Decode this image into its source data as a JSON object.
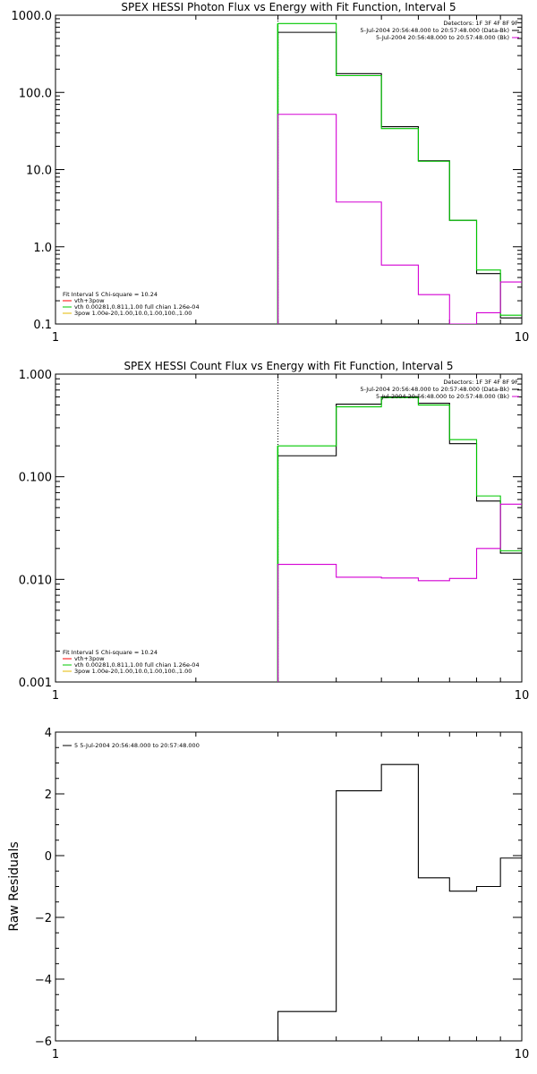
{
  "chart_data": [
    {
      "type": "line",
      "title": "SPEX HESSI Photon Flux vs Energy with Fit Function, Interval 5",
      "xlabel": "",
      "ylabel": "",
      "xscale": "log",
      "yscale": "log",
      "xlim": [
        1,
        10
      ],
      "ylim": [
        0.1,
        1000
      ],
      "xticks": [
        {
          "v": 1,
          "label": "1"
        },
        {
          "v": 10,
          "label": "10"
        }
      ],
      "yticks": [
        {
          "v": 1000,
          "label": "1000.0"
        },
        {
          "v": 100,
          "label": "100.0"
        },
        {
          "v": 10,
          "label": "10.0"
        },
        {
          "v": 1,
          "label": "1.0"
        },
        {
          "v": 0.1,
          "label": "0.1"
        }
      ],
      "vline": 3,
      "legend_right": [
        {
          "text": "Detectors: 1F 3F 4F 8F 9F",
          "color": ""
        },
        {
          "text": "5-Jul-2004 20:56:48.000 to 20:57:48.000 (Data-Bk)",
          "color": "#000000"
        },
        {
          "text": "5-Jul-2004 20:56:48.000 to 20:57:48.000 (Bk)",
          "color": "#d400d4"
        }
      ],
      "legend_left": [
        {
          "text": "Fit Interval 5   Chi-square = 10.24",
          "color": ""
        },
        {
          "text": "vth+3pow",
          "color": "#ff0000"
        },
        {
          "text": "vth 0.00281,0.811,1.00   full chian 1.26e-04",
          "color": "#00c800"
        },
        {
          "text": "3pow 1.00e-20,1.00,10.0,1.00,100.,1.00",
          "color": "#e6b800"
        }
      ],
      "series": [
        {
          "color": "#000000",
          "edges": [
            3,
            4,
            5,
            6,
            7,
            8,
            9,
            10
          ],
          "values": [
            600,
            175,
            36,
            13,
            2.2,
            0.45,
            0.12
          ]
        },
        {
          "color": "#00c800",
          "edges": [
            3,
            4,
            5,
            6,
            7,
            8,
            9,
            10
          ],
          "values": [
            780,
            165,
            34,
            12.8,
            2.2,
            0.5,
            0.13
          ]
        },
        {
          "color": "#d400d4",
          "edges": [
            3,
            4,
            5,
            6,
            7,
            8,
            9,
            10
          ],
          "values": [
            52,
            3.8,
            0.58,
            0.24,
            0.1,
            0.14,
            0.35
          ]
        }
      ]
    },
    {
      "type": "line",
      "title": "SPEX HESSI Count Flux vs Energy with Fit Function, Interval 5",
      "xlabel": "",
      "ylabel": "",
      "xscale": "log",
      "yscale": "log",
      "xlim": [
        1,
        10
      ],
      "ylim": [
        0.001,
        1
      ],
      "xticks": [
        {
          "v": 1,
          "label": "1"
        },
        {
          "v": 10,
          "label": "10"
        }
      ],
      "yticks": [
        {
          "v": 1,
          "label": "1.000"
        },
        {
          "v": 0.1,
          "label": "0.100"
        },
        {
          "v": 0.01,
          "label": "0.010"
        },
        {
          "v": 0.001,
          "label": "0.001"
        }
      ],
      "vline": 3,
      "legend_right": [
        {
          "text": "Detectors: 1F 3F 4F 8F 9F",
          "color": ""
        },
        {
          "text": "5-Jul-2004 20:56:48.000 to 20:57:48.000 (Data-Bk)",
          "color": "#000000"
        },
        {
          "text": "5-Jul-2004 20:56:48.000 to 20:57:48.000 (Bk)",
          "color": "#d400d4"
        }
      ],
      "legend_left": [
        {
          "text": "Fit Interval 5   Chi-square = 10.24",
          "color": ""
        },
        {
          "text": "vth+3pow",
          "color": "#ff0000"
        },
        {
          "text": "vth 0.00281,0.811,1.00   full chian 1.26e-04",
          "color": "#00c800"
        },
        {
          "text": "3pow 1.00e-20,1.00,10.0,1.00,100.,1.00",
          "color": "#e6b800"
        }
      ],
      "series": [
        {
          "color": "#000000",
          "edges": [
            3,
            4,
            5,
            6,
            7,
            8,
            9,
            10
          ],
          "values": [
            0.16,
            0.51,
            0.6,
            0.52,
            0.21,
            0.058,
            0.018
          ]
        },
        {
          "color": "#00c800",
          "edges": [
            3,
            4,
            5,
            6,
            7,
            8,
            9,
            10
          ],
          "values": [
            0.2,
            0.48,
            0.59,
            0.5,
            0.23,
            0.065,
            0.019
          ]
        },
        {
          "color": "#d400d4",
          "edges": [
            3,
            4,
            5,
            6,
            7,
            8,
            9,
            10
          ],
          "values": [
            0.014,
            0.0105,
            0.0103,
            0.0097,
            0.0102,
            0.02,
            0.054
          ]
        }
      ]
    },
    {
      "type": "line",
      "title": "",
      "xlabel": "",
      "ylabel": "Raw Residuals",
      "xscale": "log",
      "yscale": "linear",
      "xlim": [
        1,
        10
      ],
      "ylim": [
        -6,
        4
      ],
      "xticks": [
        {
          "v": 1,
          "label": "1"
        },
        {
          "v": 10,
          "label": "10"
        }
      ],
      "yticks": [
        {
          "v": 4,
          "label": "4"
        },
        {
          "v": 2,
          "label": "2"
        },
        {
          "v": 0,
          "label": "0"
        },
        {
          "v": -2,
          "label": "−2"
        },
        {
          "v": -4,
          "label": "−4"
        },
        {
          "v": -6,
          "label": "−6"
        }
      ],
      "legend_left": [
        {
          "text": "5  5-Jul-2004 20:56:48.000 to 20:57:48.000",
          "color": "#000000"
        }
      ],
      "series": [
        {
          "color": "#000000",
          "edges": [
            3,
            4,
            5,
            6,
            7,
            8,
            9,
            10
          ],
          "values": [
            -5.05,
            2.1,
            2.95,
            -0.72,
            -1.15,
            -1.0,
            -0.08
          ]
        }
      ]
    }
  ]
}
